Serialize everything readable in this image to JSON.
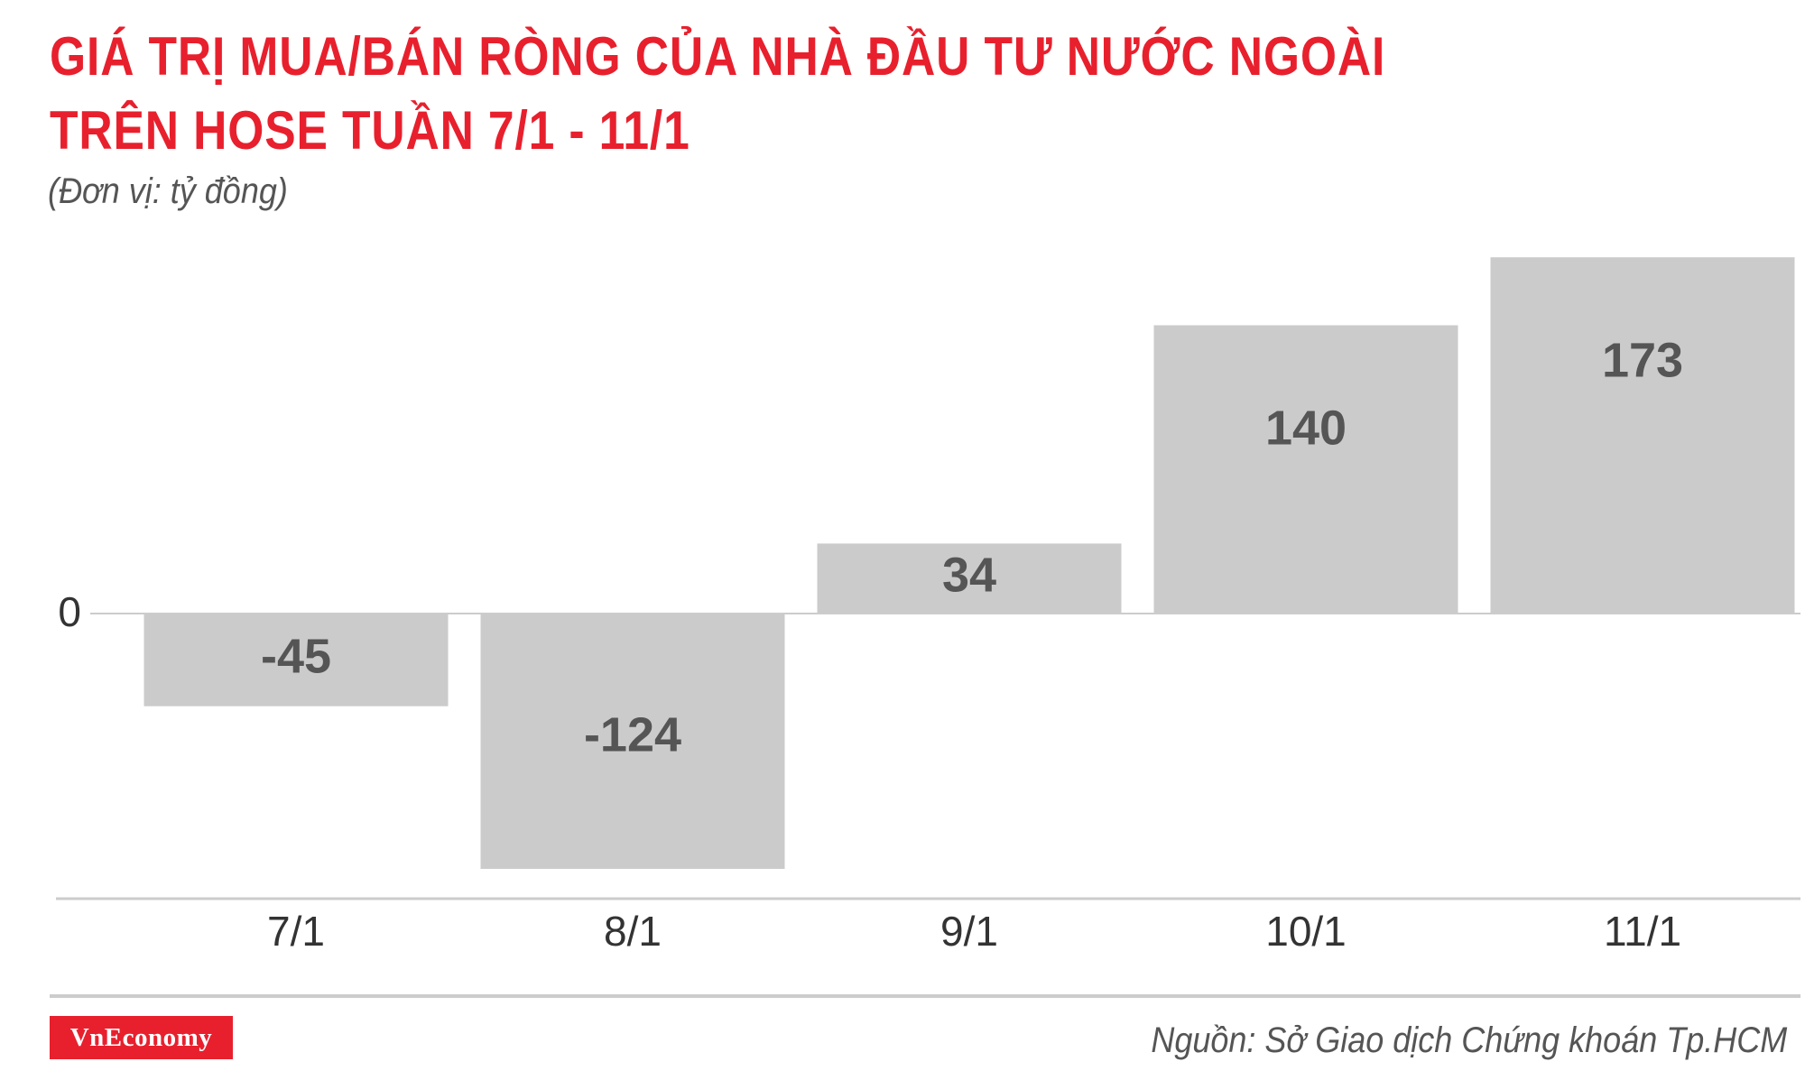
{
  "header": {
    "title_line1": "GIÁ TRỊ MUA/BÁN RÒNG CỦA NHÀ ĐẦU TƯ NƯỚC NGOÀI",
    "title_line2": "TRÊN HOSE TUẦN 7/1 - 11/1",
    "subtitle": "(Đơn vị: tỷ đồng)"
  },
  "chart_data": {
    "type": "bar",
    "categories": [
      "7/1",
      "8/1",
      "9/1",
      "10/1",
      "11/1"
    ],
    "values": [
      -45,
      -124,
      34,
      140,
      173
    ],
    "data_labels": [
      "-45",
      "-124",
      "34",
      "140",
      "173"
    ],
    "y_ticks": [
      0
    ],
    "y_tick_labels": [
      "0"
    ],
    "ylim": [
      -124,
      173
    ],
    "grid": false,
    "legend": "none",
    "bar_color": "#cccbcc"
  },
  "footer": {
    "logo_text": "VnEconomy",
    "source": "Nguồn: Sở Giao dịch Chứng khoán Tp.HCM"
  },
  "colors": {
    "title": "#e8202d",
    "logo_bg": "#e8202d",
    "bar": "#cccbcc",
    "label": "#555555"
  }
}
